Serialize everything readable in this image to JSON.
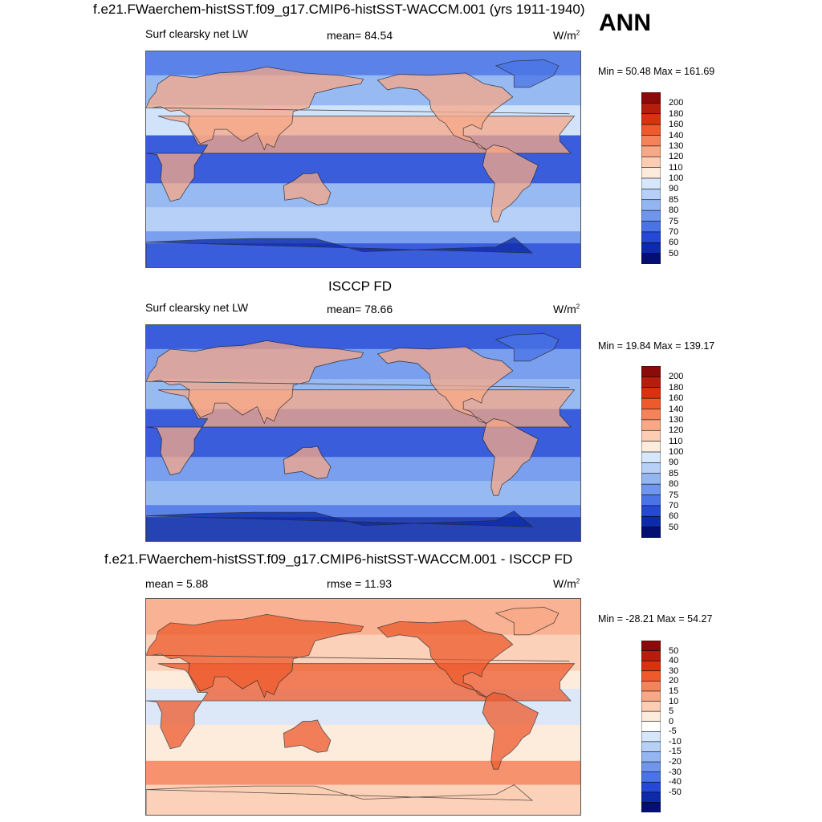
{
  "header": {
    "title": "f.e21.FWaerchem-histSST.f09_g17.CMIP6-histSST-WACCM.001 (yrs 1911-1940)",
    "season": "ANN"
  },
  "units": {
    "base": "W/m",
    "exp": "2"
  },
  "chart_data": [
    {
      "type": "heatmap",
      "id": "model",
      "title": "f.e21.FWaerchem-histSST.f09_g17.CMIP6-histSST-WACCM.001 (yrs 1911-1940)",
      "left_label": "Surf clearsky net LW",
      "center_label": "mean=  84.54",
      "right_label": "W/m2",
      "minmax": "Min =  50.48 Max = 161.69",
      "mean": 84.54,
      "min": 50.48,
      "max": 161.69,
      "colorbar_levels": [
        "200",
        "180",
        "160",
        "140",
        "130",
        "120",
        "110",
        "100",
        "90",
        "85",
        "80",
        "75",
        "70",
        "60",
        "50"
      ]
    },
    {
      "type": "heatmap",
      "id": "obs",
      "title": "ISCCP FD",
      "left_label": "Surf clearsky net LW",
      "center_label": "mean=  78.66",
      "right_label": "W/m2",
      "minmax": "Min =  19.84 Max = 139.17",
      "mean": 78.66,
      "min": 19.84,
      "max": 139.17,
      "colorbar_levels": [
        "200",
        "180",
        "160",
        "140",
        "130",
        "120",
        "110",
        "100",
        "90",
        "85",
        "80",
        "75",
        "70",
        "60",
        "50"
      ]
    },
    {
      "type": "heatmap",
      "id": "diff",
      "title": "f.e21.FWaerchem-histSST.f09_g17.CMIP6-histSST-WACCM.001 - ISCCP FD",
      "left_label": "mean =   5.88",
      "center_label": "rmse =  11.93",
      "right_label": "W/m2",
      "minmax": "Min = -28.21 Max =  54.27",
      "mean": 5.88,
      "rmse": 11.93,
      "min": -28.21,
      "max": 54.27,
      "colorbar_levels": [
        "50",
        "40",
        "30",
        "20",
        "15",
        "10",
        "5",
        "0",
        "-5",
        "-10",
        "-15",
        "-20",
        "-30",
        "-40",
        "-50"
      ]
    }
  ],
  "colors": {
    "abs_scale": [
      "#8b0a0a",
      "#b51e0c",
      "#d8330e",
      "#ee5a2c",
      "#f5835a",
      "#f8a886",
      "#fccdb3",
      "#fdebdc",
      "#d6e6fb",
      "#b6d0f8",
      "#93b6f2",
      "#6f96ec",
      "#4a74e6",
      "#2549d6",
      "#0d2aa8",
      "#050f72"
    ],
    "diff_scale": [
      "#8b0a0a",
      "#b51e0c",
      "#d8330e",
      "#ee5a2c",
      "#f5835a",
      "#f8a886",
      "#fccdb3",
      "#fdebdc",
      "#ffffff",
      "#d6e6fb",
      "#b6d0f8",
      "#93b6f2",
      "#6f96ec",
      "#4a74e6",
      "#2549d6",
      "#0d2aa8",
      "#050f72"
    ],
    "land_outline": "#222222"
  }
}
